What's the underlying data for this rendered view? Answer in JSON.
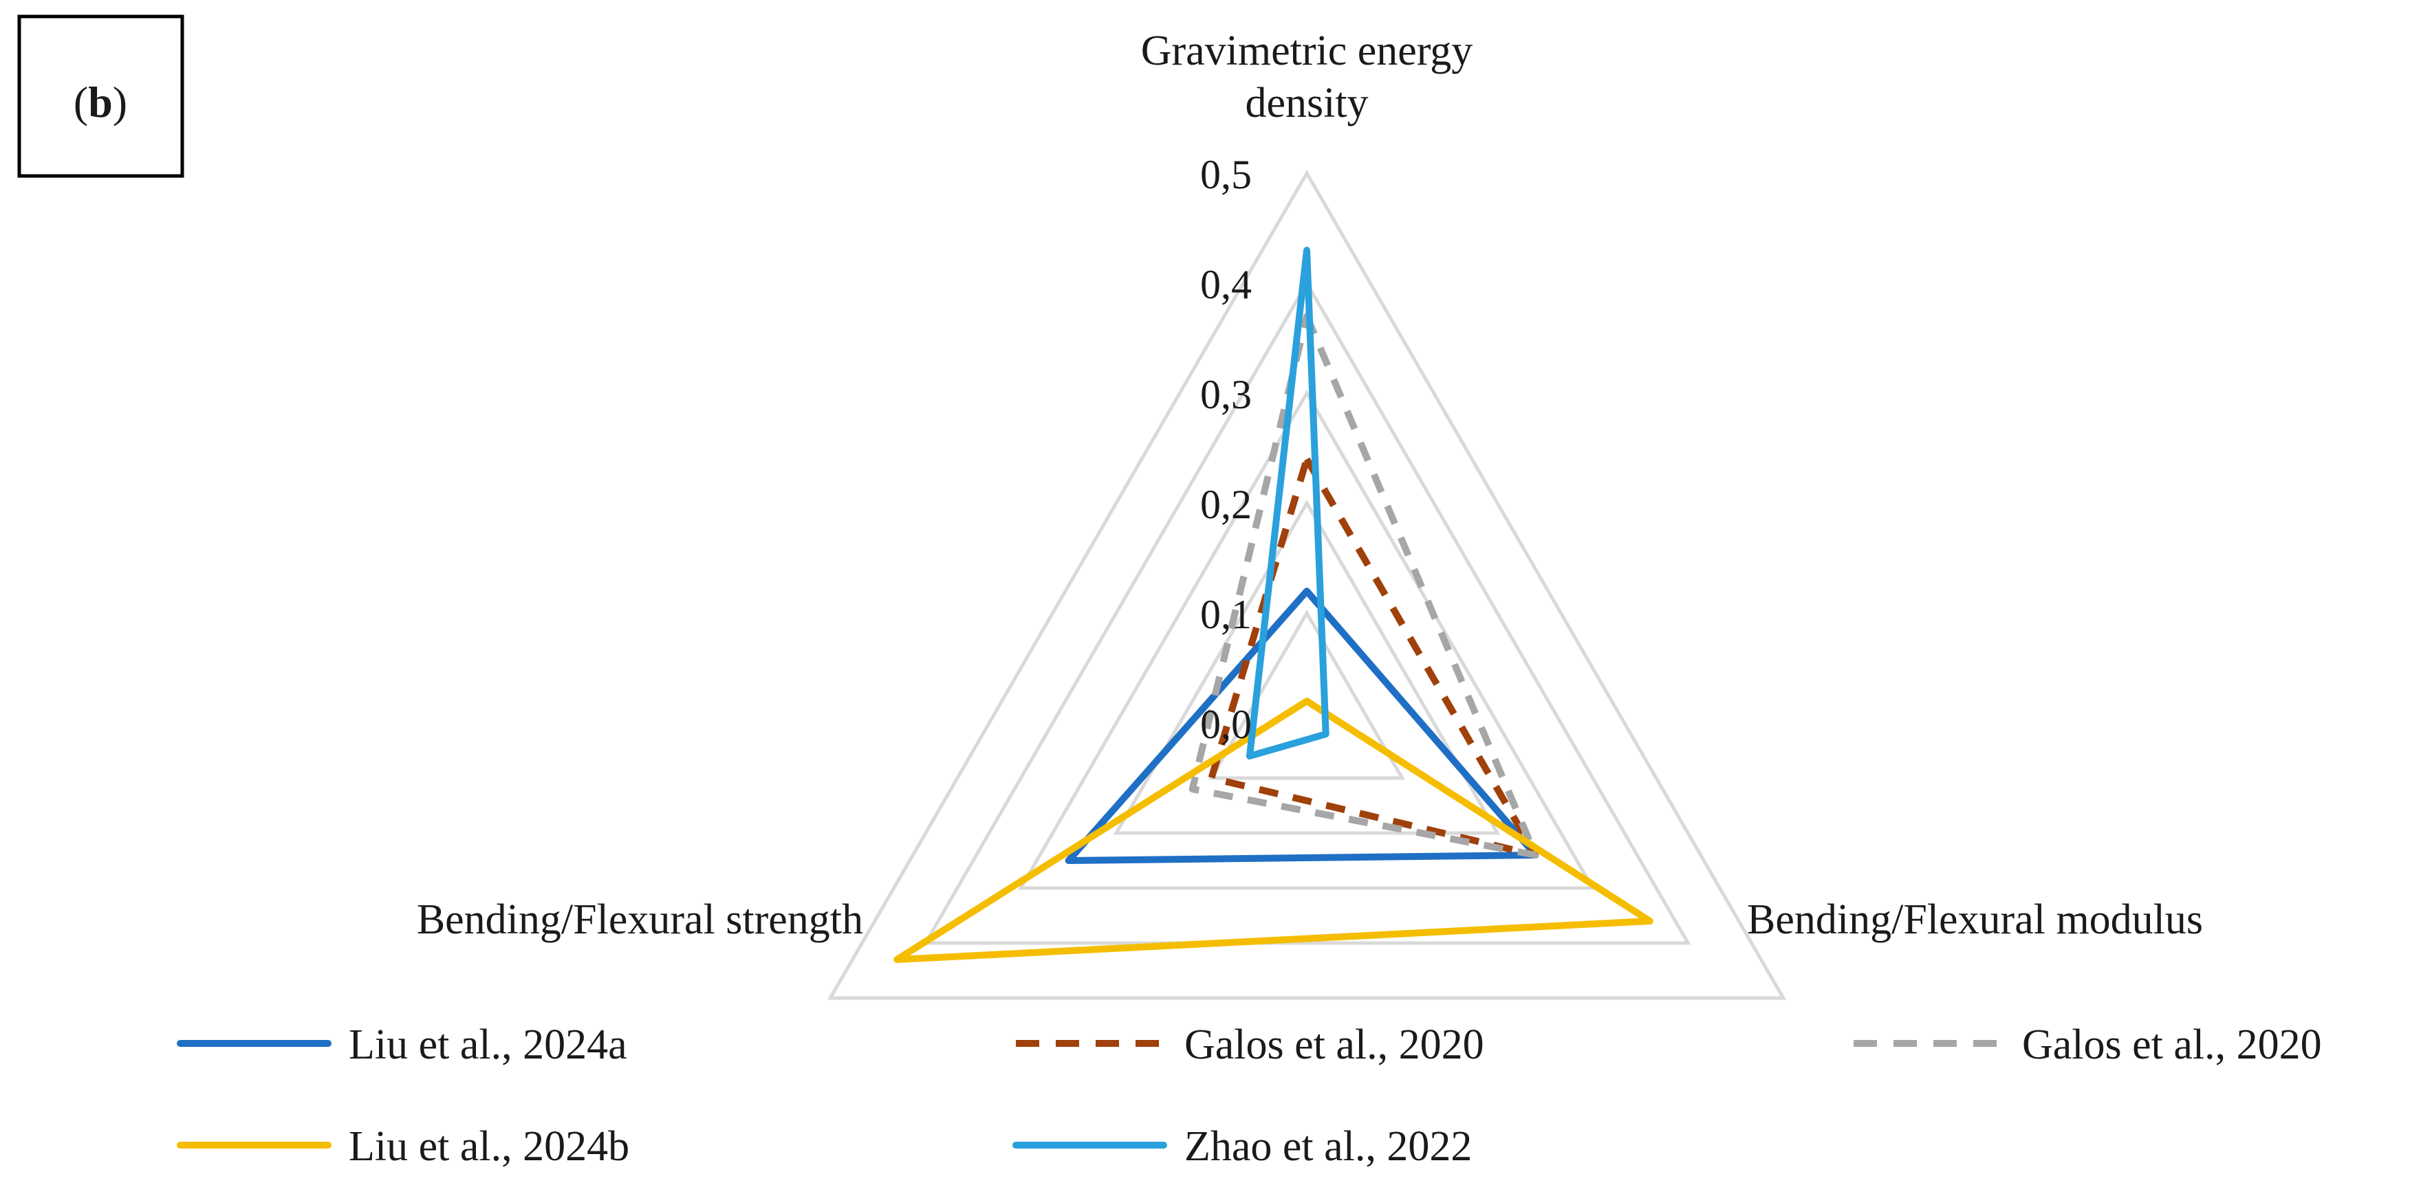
{
  "panel_label": {
    "open": "(",
    "letter": "b",
    "close": ")"
  },
  "chart_data": {
    "type": "radar",
    "axes": [
      {
        "name": "Gravimetric energy density",
        "label_lines": [
          "Gravimetric energy",
          "density"
        ]
      },
      {
        "name": "Bending/Flexural modulus",
        "label_lines": [
          "Bending/Flexural modulus"
        ]
      },
      {
        "name": "Bending/Flexural strength",
        "label_lines": [
          "Bending/Flexural strength"
        ]
      }
    ],
    "range": [
      0,
      0.5
    ],
    "ticks": [
      0.0,
      0.1,
      0.2,
      0.3,
      0.4,
      0.5
    ],
    "tick_labels": [
      "0,0",
      "0,1",
      "0,2",
      "0,3",
      "0,4",
      "0,5"
    ],
    "grid": true,
    "legend_position": "bottom",
    "series": [
      {
        "name": "Liu et al., 2024a",
        "color": "#1f6fc5",
        "dash": "solid",
        "values": [
          0.12,
          0.24,
          0.25
        ]
      },
      {
        "name": "Galos et al., 2020",
        "color": "#a0400a",
        "dash": "dashed",
        "values": [
          0.24,
          0.24,
          0.1
        ]
      },
      {
        "name": "Galos et al., 2020",
        "color": "#a6a6a6",
        "dash": "dashed",
        "values": [
          0.37,
          0.24,
          0.12
        ]
      },
      {
        "name": "Liu et al., 2024b",
        "color": "#f5bd00",
        "dash": "solid",
        "values": [
          0.02,
          0.36,
          0.43
        ]
      },
      {
        "name": "Zhao et al., 2022",
        "color": "#2aa0dc",
        "dash": "solid",
        "values": [
          0.43,
          0.02,
          0.06
        ]
      }
    ]
  }
}
